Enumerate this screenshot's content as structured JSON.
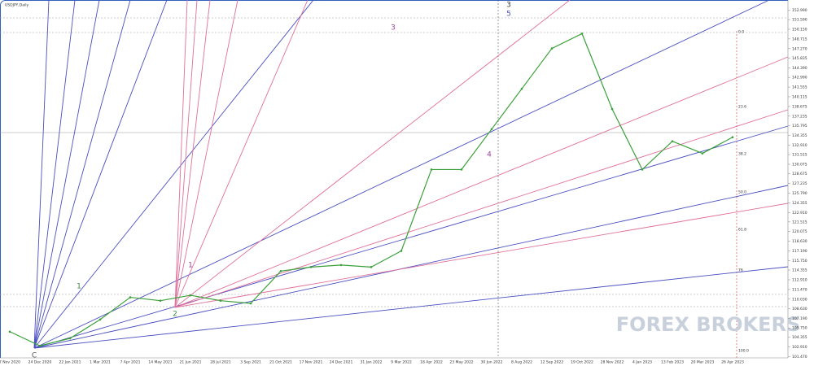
{
  "chart_data": {
    "type": "line",
    "title": "USDJPY,Daily",
    "categories": [
      "7 Nov 2020",
      "24 Dec 2020",
      "22 Jan 2021",
      "1 Mar 2021",
      "7 Apr 2021",
      "14 May 2021",
      "21 Jun 2021",
      "28 Jul 2021",
      "3 Sep 2021",
      "21 Oct 2021",
      "17 Nov 2021",
      "24 Dec 2021",
      "31 Jan 2022",
      "9 Mar 2022",
      "18 Apr 2022",
      "23 May 2022",
      "30 Jun 2022",
      "8 Aug 2022",
      "12 Sep 2022",
      "19 Oct 2022",
      "28 Nov 2022",
      "4 Jan 2023",
      "13 Feb 2023",
      "20 Mar 2023",
      "26 Apr 2023"
    ],
    "values": [
      105.2,
      103.1,
      104.2,
      107.0,
      110.3,
      109.8,
      110.6,
      109.8,
      109.4,
      114.2,
      114.8,
      115.1,
      114.8,
      117.2,
      129.3,
      129.3,
      135.3,
      141.3,
      147.3,
      149.5,
      138.3,
      129.3,
      133.5,
      131.7,
      134.1
    ],
    "color": "#3aa03a",
    "ylim": [
      101.3,
      154.5
    ],
    "yticks": [
      {
        "value": 101.47,
        "label": "101.470"
      },
      {
        "value": 102.91,
        "label": "102.910"
      },
      {
        "value": 104.355,
        "label": "104.355"
      },
      {
        "value": 105.75,
        "label": "105.750"
      },
      {
        "value": 107.19,
        "label": "107.190"
      },
      {
        "value": 108.63,
        "label": "108.630"
      },
      {
        "value": 110.03,
        "label": "110.030"
      },
      {
        "value": 111.47,
        "label": "111.470"
      },
      {
        "value": 112.91,
        "label": "112.910"
      },
      {
        "value": 114.355,
        "label": "114.355"
      },
      {
        "value": 115.75,
        "label": "115.750"
      },
      {
        "value": 117.19,
        "label": "117.190"
      },
      {
        "value": 118.63,
        "label": "118.630"
      },
      {
        "value": 120.075,
        "label": "120.075"
      },
      {
        "value": 121.515,
        "label": "121.515"
      },
      {
        "value": 122.91,
        "label": "122.910"
      },
      {
        "value": 124.355,
        "label": "124.355"
      },
      {
        "value": 125.79,
        "label": "125.790"
      },
      {
        "value": 127.235,
        "label": "127.235"
      },
      {
        "value": 128.675,
        "label": "128.675"
      },
      {
        "value": 130.075,
        "label": "130.075"
      },
      {
        "value": 131.515,
        "label": "131.515"
      },
      {
        "value": 132.91,
        "label": "132.910"
      },
      {
        "value": 134.355,
        "label": "134.355"
      },
      {
        "value": 135.795,
        "label": "135.795"
      },
      {
        "value": 137.235,
        "label": "137.235"
      },
      {
        "value": 138.675,
        "label": "138.675"
      },
      {
        "value": 140.115,
        "label": "140.115"
      },
      {
        "value": 141.555,
        "label": "141.555"
      },
      {
        "value": 142.99,
        "label": "142.990"
      },
      {
        "value": 144.39,
        "label": "144.390"
      },
      {
        "value": 145.835,
        "label": "145.835"
      },
      {
        "value": 147.27,
        "label": "147.270"
      },
      {
        "value": 148.715,
        "label": "148.715"
      },
      {
        "value": 150.15,
        "label": "150.150"
      },
      {
        "value": 151.59,
        "label": "151.590"
      },
      {
        "value": 152.99,
        "label": "152.990"
      }
    ],
    "wave_labels": [
      "C",
      "1",
      "2",
      "1",
      "3",
      "4",
      "3",
      "5"
    ],
    "fib_levels": [
      "0.0",
      "23.6",
      "38.2",
      "50.0",
      "61.8",
      "76",
      "100.0"
    ],
    "watermark": "FOREX BROKERS"
  }
}
